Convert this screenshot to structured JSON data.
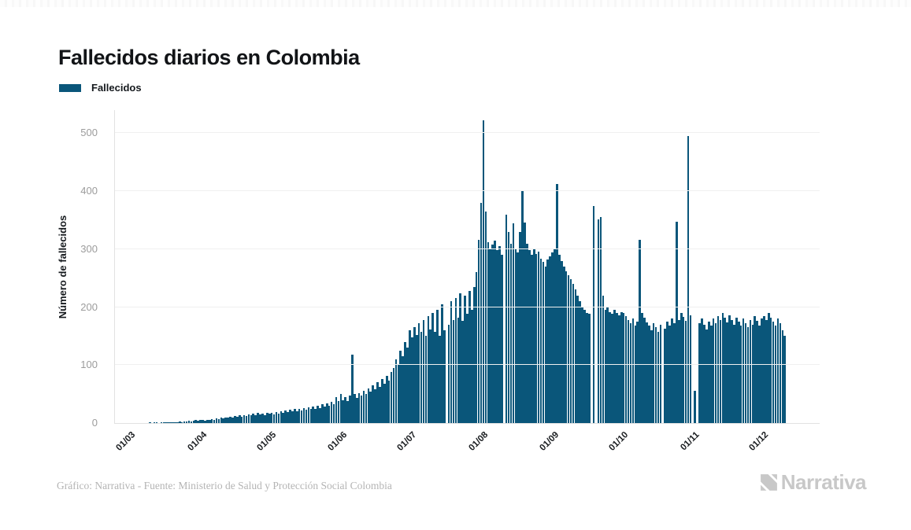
{
  "page": {
    "title": "Fallecidos diarios en Colombia"
  },
  "legend": {
    "label": "Fallecidos"
  },
  "footer": {
    "credit": "Gráfico: Narrativa - Fuente: Ministerio de Salud y Protección Social Colombia",
    "brand": "Narrativa"
  },
  "colors": {
    "bar": "#0a567a",
    "grid": "#f0f0f0",
    "axis": "#e2e2e2",
    "y_tick_text": "#9c9c9c",
    "x_tick_text": "#1a1d20",
    "title_text": "#121417",
    "footer_text": "#b4b4b4",
    "brand_gray": "#c8c8c8"
  },
  "chart_data": {
    "type": "bar",
    "title": "Fallecidos diarios en Colombia",
    "xlabel": "",
    "ylabel": "Número de fallecidos",
    "legend_entries": [
      "Fallecidos"
    ],
    "legend_position": "top-left",
    "grid": "horizontal",
    "bar_color": "#0a567a",
    "ylim": [
      0,
      540
    ],
    "yticks": [
      0,
      100,
      200,
      300,
      400,
      500
    ],
    "x_tick_labels": [
      "01/03",
      "01/04",
      "01/05",
      "01/06",
      "01/07",
      "01/08",
      "01/09",
      "01/10",
      "01/11",
      "01/12"
    ],
    "x_tick_day_index": [
      5,
      36,
      66,
      97,
      127,
      158,
      189,
      219,
      250,
      280
    ],
    "values": [
      0,
      0,
      0,
      0,
      0,
      0,
      0,
      0,
      0,
      0,
      0,
      0,
      0,
      1,
      0,
      1,
      1,
      0,
      1,
      1,
      2,
      1,
      2,
      1,
      2,
      2,
      3,
      2,
      3,
      3,
      4,
      3,
      4,
      5,
      4,
      5,
      5,
      4,
      6,
      5,
      7,
      6,
      8,
      7,
      9,
      8,
      10,
      9,
      11,
      10,
      12,
      11,
      13,
      11,
      14,
      12,
      15,
      13,
      16,
      14,
      17,
      15,
      16,
      14,
      17,
      16,
      17,
      15,
      19,
      16,
      21,
      18,
      22,
      19,
      23,
      20,
      24,
      21,
      25,
      22,
      26,
      23,
      27,
      24,
      28,
      25,
      30,
      26,
      32,
      28,
      34,
      30,
      36,
      32,
      45,
      38,
      50,
      40,
      45,
      38,
      48,
      118,
      50,
      44,
      52,
      47,
      56,
      50,
      60,
      54,
      65,
      58,
      70,
      63,
      76,
      68,
      82,
      73,
      88,
      95,
      110,
      100,
      125,
      115,
      140,
      130,
      160,
      148,
      165,
      152,
      172,
      158,
      178,
      150,
      184,
      162,
      190,
      158,
      196,
      150,
      205,
      160,
      0,
      170,
      210,
      178,
      216,
      182,
      224,
      176,
      220,
      188,
      228,
      196,
      235,
      260,
      316,
      380,
      523,
      365,
      312,
      300,
      308,
      315,
      298,
      305,
      290,
      0,
      360,
      330,
      310,
      345,
      300,
      295,
      330,
      400,
      346,
      310,
      298,
      290,
      300,
      292,
      296,
      284,
      278,
      270,
      282,
      288,
      294,
      300,
      412,
      290,
      280,
      270,
      262,
      255,
      248,
      240,
      230,
      220,
      210,
      200,
      195,
      190,
      188,
      0,
      374,
      0,
      352,
      356,
      220,
      196,
      200,
      192,
      188,
      195,
      190,
      186,
      192,
      190,
      185,
      178,
      172,
      180,
      168,
      175,
      316,
      190,
      182,
      174,
      168,
      160,
      172,
      165,
      158,
      170,
      0,
      163,
      175,
      168,
      180,
      172,
      347,
      178,
      190,
      183,
      176,
      495,
      186,
      0,
      55,
      0,
      172,
      180,
      170,
      162,
      175,
      168,
      180,
      172,
      185,
      178,
      190,
      182,
      174,
      186,
      178,
      170,
      182,
      175,
      168,
      180,
      173,
      165,
      178,
      170,
      184,
      176,
      168,
      180,
      185,
      178,
      190,
      182,
      175,
      168,
      180,
      172,
      160,
      150
    ]
  }
}
